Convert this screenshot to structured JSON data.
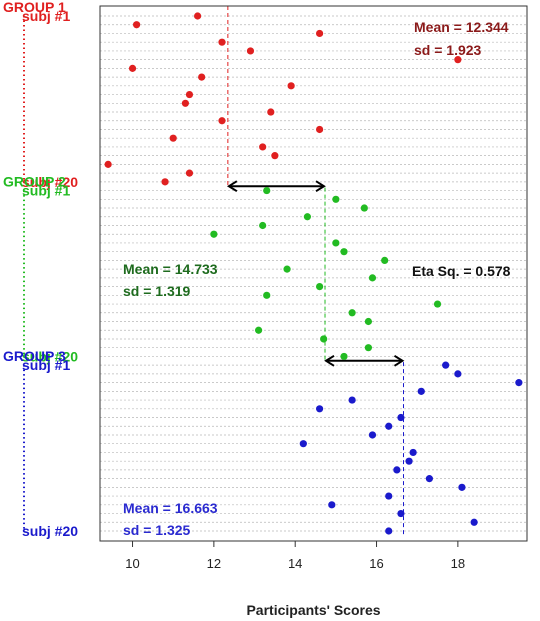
{
  "chart_data": {
    "type": "scatter",
    "xlabel": "Participants' Scores",
    "xlim": [
      9.2,
      19.7
    ],
    "xticks": [
      10,
      12,
      14,
      16,
      18
    ],
    "rows_total": 60,
    "groups": [
      {
        "name": "GROUP 1",
        "first_label": "subj #1",
        "last_label": "subj #20",
        "color": "#e02020",
        "mean": 12.344,
        "mean_label": "Mean = 12.344",
        "sd_label": "sd = 1.923",
        "label_color": "#8b1a1a",
        "values": [
          11.6,
          10.1,
          14.6,
          12.2,
          12.9,
          18.0,
          10.0,
          11.7,
          13.9,
          11.4,
          11.3,
          13.4,
          12.2,
          14.6,
          11.0,
          13.2,
          13.5,
          9.4,
          11.4,
          10.8
        ]
      },
      {
        "name": "GROUP 2",
        "first_label": "subj #1",
        "last_label": "subj #20",
        "color": "#22bb22",
        "mean": 14.733,
        "mean_label": "Mean = 14.733",
        "sd_label": "sd = 1.319",
        "label_color": "#1e6b1e",
        "values": [
          13.3,
          15.0,
          15.7,
          14.3,
          13.2,
          12.0,
          15.0,
          15.2,
          16.2,
          13.8,
          15.9,
          14.6,
          13.3,
          17.5,
          15.4,
          15.8,
          13.1,
          14.7,
          15.8,
          15.2
        ]
      },
      {
        "name": "GROUP 3",
        "first_label": "subj #1",
        "last_label": "subj #20",
        "color": "#1a1acc",
        "mean": 16.663,
        "mean_label": "Mean = 16.663",
        "sd_label": "sd = 1.325",
        "label_color": "#2a2ad0",
        "values": [
          17.7,
          18.0,
          19.5,
          17.1,
          15.4,
          14.6,
          16.6,
          16.3,
          15.9,
          14.2,
          16.9,
          16.8,
          16.5,
          17.3,
          18.1,
          16.3,
          14.9,
          16.6,
          18.4,
          16.3
        ]
      }
    ],
    "eta_label": "Eta Sq. = 0.578"
  }
}
